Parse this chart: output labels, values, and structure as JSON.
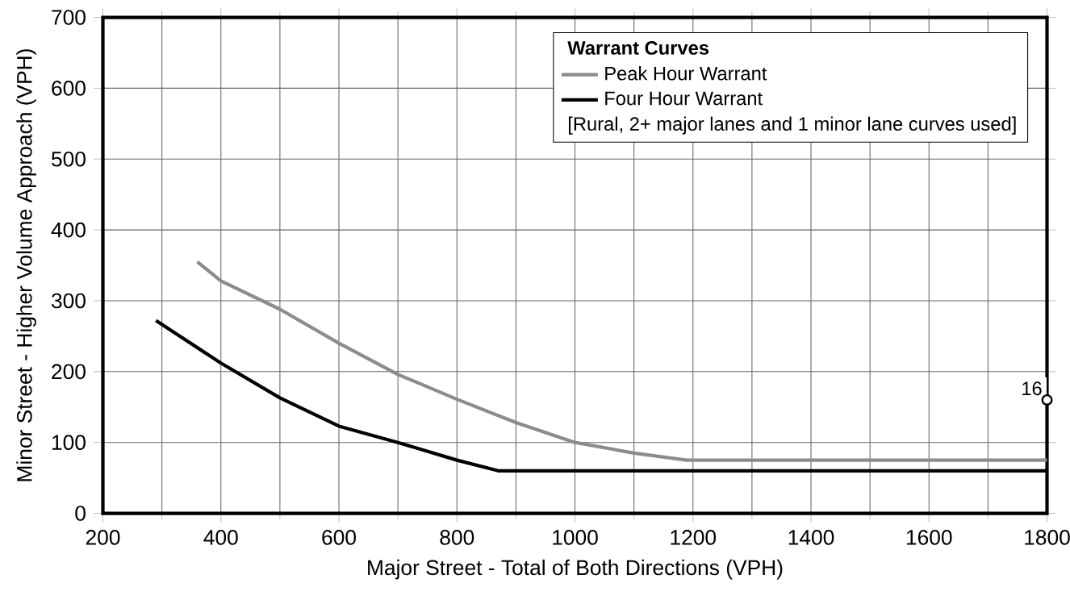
{
  "chart_data": {
    "type": "line",
    "xlabel": "Major Street - Total of Both Directions (VPH)",
    "ylabel": "Minor Street - Higher Volume Approach (VPH)",
    "legend_title": "Warrant Curves",
    "legend": "top right",
    "grid": true,
    "xlim": [
      200,
      1800
    ],
    "ylim": [
      0,
      700
    ],
    "xticks": [
      200,
      400,
      600,
      800,
      1000,
      1200,
      1400,
      1600,
      1800
    ],
    "yticks": [
      0,
      100,
      200,
      300,
      400,
      500,
      600,
      700
    ],
    "series": [
      {
        "name": "Peak Hour Warrant",
        "color": "#8c8c8c",
        "x": [
          360,
          400,
          500,
          600,
          700,
          800,
          900,
          1000,
          1100,
          1190,
          1800
        ],
        "values": [
          355,
          328,
          288,
          240,
          196,
          161,
          128,
          100,
          85,
          75,
          75
        ]
      },
      {
        "name": "Four Hour Warrant",
        "color": "#000000",
        "x": [
          290,
          400,
          500,
          600,
          700,
          800,
          870,
          1800
        ],
        "values": [
          272,
          212,
          163,
          123,
          100,
          75,
          60,
          60
        ]
      },
      {
        "type": "scatter",
        "marker": "circle",
        "color": "#000000",
        "x": [
          1800
        ],
        "values": [
          160
        ]
      }
    ],
    "annotations": [
      "[Rural,  2+ major lanes and 1 minor lane curves used]",
      {
        "text": "16",
        "x": 1800,
        "y": 160
      }
    ]
  }
}
